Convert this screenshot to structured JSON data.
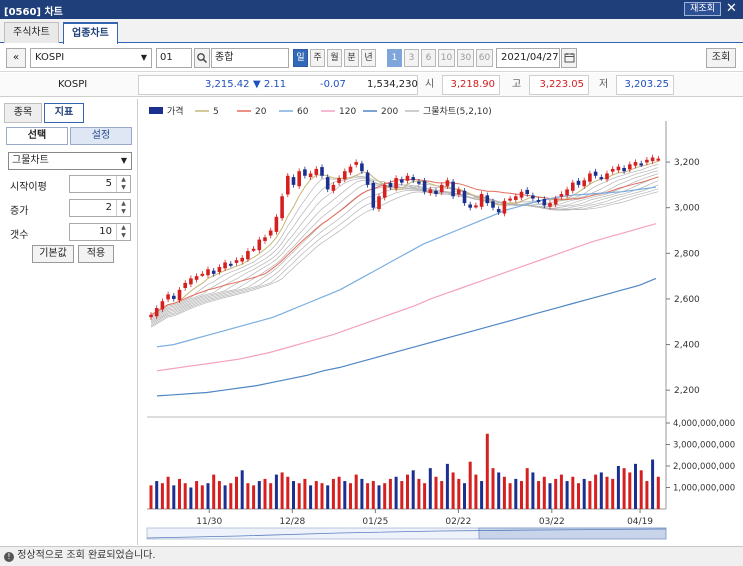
{
  "window": {
    "title": "[0560] 차트",
    "reset_label": "재조회",
    "close_label": "✕"
  },
  "tabs": [
    {
      "label": "주식차트"
    },
    {
      "label": "업종차트"
    }
  ],
  "toolbar": {
    "prev_label": "«",
    "market": "KOSPI",
    "code": "01",
    "name": "종합",
    "periods": [
      "일",
      "주",
      "월",
      "분",
      "년"
    ],
    "intervals": [
      "1",
      "3",
      "6",
      "10",
      "30",
      "60"
    ],
    "date": "2021/04/27",
    "calendar_icon": "calendar-icon",
    "search_icon": "search-icon",
    "query_label": "조회"
  },
  "price": {
    "name": "KOSPI",
    "last": "3,215.42",
    "change": "▼ 2.11",
    "rate": "-0.07",
    "volume": "1,534,230",
    "open_label": "시",
    "open": "3,218.90",
    "high_label": "고",
    "high": "3,223.05",
    "low_label": "저",
    "low": "3,203.25"
  },
  "left_panel": {
    "tabs": [
      "종목",
      "지표"
    ],
    "subtabs": [
      "선택",
      "설정"
    ],
    "indicator": "그물차트",
    "params": [
      {
        "label": "시작이평",
        "value": "5"
      },
      {
        "label": "증가",
        "value": "2"
      },
      {
        "label": "갯수",
        "value": "10"
      }
    ],
    "default_label": "기본값",
    "apply_label": "적용"
  },
  "chart_data": {
    "type": "line",
    "legend": [
      {
        "name": "가격",
        "color": "#1b2f8f"
      },
      {
        "name": "5",
        "color": "#c9b97a"
      },
      {
        "name": "20",
        "color": "#e36c5a"
      },
      {
        "name": "60",
        "color": "#7aaee0"
      },
      {
        "name": "120",
        "color": "#f4a0c2"
      },
      {
        "name": "200",
        "color": "#4f86c6"
      },
      {
        "name": "그물차트(5,2,10)",
        "color": "#bdbdbd"
      }
    ],
    "x_ticks": [
      "11/30",
      "12/28",
      "01/25",
      "02/22",
      "03/22",
      "04/19"
    ],
    "price_ticks": [
      "3,200",
      "3,000",
      "2,800",
      "2,600",
      "2,400",
      "2,200"
    ],
    "price_range": [
      2100,
      3380
    ],
    "volume_ticks": [
      "4,000,000,000",
      "3,000,000,000",
      "2,000,000,000",
      "1,000,000,000"
    ],
    "volume_max": 4000000000,
    "close_series": [
      2530,
      2560,
      2590,
      2620,
      2600,
      2640,
      2670,
      2690,
      2700,
      2710,
      2730,
      2710,
      2740,
      2760,
      2750,
      2770,
      2780,
      2810,
      2820,
      2860,
      2870,
      2900,
      2960,
      3050,
      3140,
      3100,
      3160,
      3140,
      3150,
      3170,
      3140,
      3080,
      3100,
      3130,
      3160,
      3180,
      3200,
      3160,
      3100,
      3000,
      3050,
      3100,
      3090,
      3130,
      3110,
      3140,
      3120,
      3110,
      3070,
      3080,
      3060,
      3100,
      3120,
      3050,
      3080,
      3020,
      3000,
      3010,
      3060,
      3020,
      3000,
      2980,
      3030,
      3040,
      3050,
      3070,
      3060,
      3040,
      3030,
      3010,
      3020,
      3040,
      3060,
      3080,
      3110,
      3100,
      3120,
      3150,
      3140,
      3130,
      3150,
      3170,
      3180,
      3160,
      3190,
      3200,
      3190,
      3210,
      3220,
      3215
    ],
    "ma60": [
      2390,
      2400,
      2420,
      2440,
      2460,
      2480,
      2500,
      2520,
      2550,
      2580,
      2610,
      2640,
      2680,
      2720,
      2760,
      2800,
      2840,
      2870,
      2900,
      2930,
      2960,
      2990,
      3010,
      3030,
      3045,
      3055,
      3060,
      3065,
      3070,
      3080,
      3090
    ],
    "ma120": [
      2285,
      2295,
      2305,
      2315,
      2325,
      2335,
      2350,
      2365,
      2385,
      2405,
      2425,
      2445,
      2470,
      2495,
      2520,
      2545,
      2570,
      2600,
      2625,
      2650,
      2675,
      2700,
      2725,
      2750,
      2775,
      2800,
      2825,
      2850,
      2870,
      2890,
      2910,
      2930
    ],
    "ma200": [
      2175,
      2180,
      2185,
      2190,
      2200,
      2210,
      2220,
      2235,
      2250,
      2265,
      2285,
      2300,
      2320,
      2340,
      2360,
      2380,
      2400,
      2420,
      2440,
      2460,
      2480,
      2500,
      2520,
      2540,
      2560,
      2580,
      2600,
      2620,
      2640,
      2660,
      2690
    ],
    "volume_series": [
      1.1,
      1.3,
      1.2,
      1.5,
      1.1,
      1.4,
      1.2,
      1.0,
      1.3,
      1.1,
      1.2,
      1.6,
      1.3,
      1.1,
      1.2,
      1.5,
      1.8,
      1.2,
      1.1,
      1.3,
      1.4,
      1.2,
      1.6,
      1.7,
      1.5,
      1.3,
      1.2,
      1.4,
      1.1,
      1.3,
      1.2,
      1.1,
      1.4,
      1.5,
      1.3,
      1.2,
      1.6,
      1.4,
      1.2,
      1.3,
      1.1,
      1.2,
      1.4,
      1.5,
      1.3,
      1.6,
      1.8,
      1.4,
      1.2,
      1.9,
      1.5,
      1.3,
      2.1,
      1.7,
      1.4,
      1.2,
      2.2,
      1.6,
      1.3,
      3.5,
      1.9,
      1.7,
      1.5,
      1.2,
      1.4,
      1.3,
      1.9,
      1.7,
      1.3,
      1.5,
      1.2,
      1.4,
      1.6,
      1.3,
      1.5,
      1.2,
      1.4,
      1.3,
      1.6,
      1.7,
      1.5,
      1.4,
      2.0,
      1.9,
      1.7,
      2.1,
      1.8,
      1.3,
      2.3,
      1.5
    ]
  },
  "status": {
    "icon": "info-icon",
    "message": "정상적으로 조회 완료되었습니다."
  }
}
